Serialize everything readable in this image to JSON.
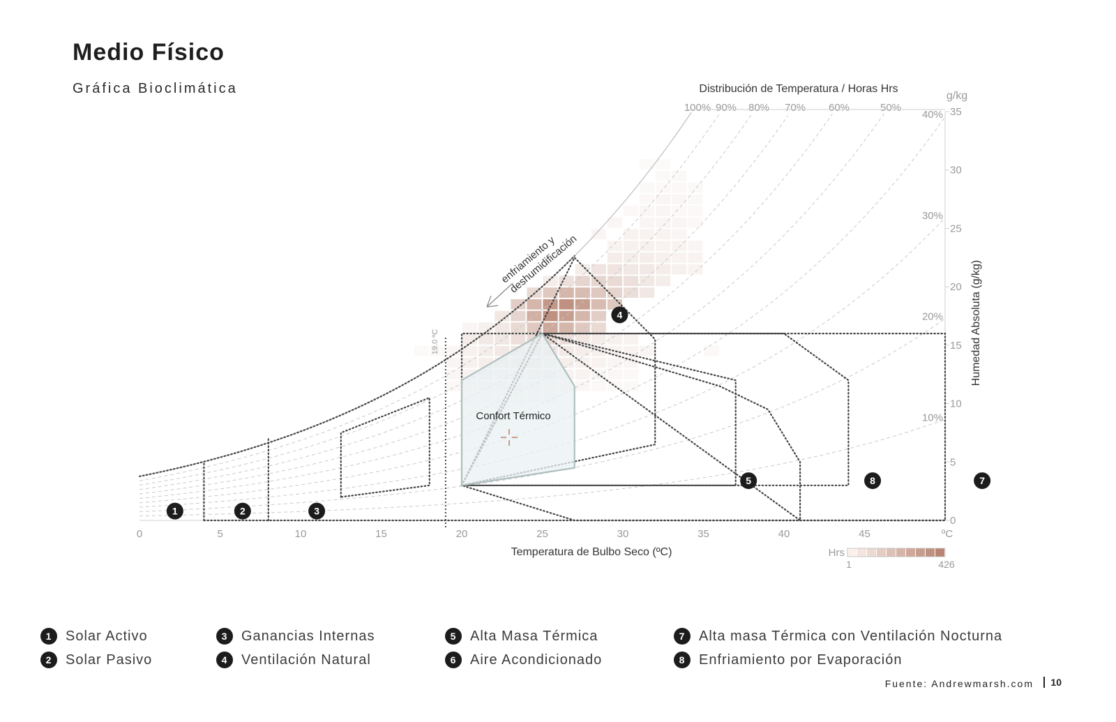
{
  "header": {
    "title": "Medio Físico",
    "subtitle": "Gráfica Bioclimática"
  },
  "chart_data": {
    "type": "psychrometric",
    "top_title": "Distribución de Temperatura / Horas Hrs",
    "xlabel": "Temperatura de Bulbo Seco (ºC)",
    "ylabel": "Humedad Absoluta (g/kg)",
    "y_unit": "g/kg",
    "x_unit_tick": "ºC",
    "xlim": [
      0,
      50
    ],
    "ylim": [
      0,
      35
    ],
    "x_ticks": [
      "0",
      "5",
      "10",
      "15",
      "20",
      "25",
      "30",
      "35",
      "40",
      "45"
    ],
    "y_ticks": [
      "0",
      "5",
      "10",
      "15",
      "20",
      "25",
      "30",
      "35"
    ],
    "rh_top_labels": [
      "100%",
      "90%",
      "80%",
      "70%",
      "60%",
      "50%"
    ],
    "rh_right_labels": [
      "40%",
      "30%",
      "20%",
      "10%"
    ],
    "rh_right_values": [
      40,
      30,
      20,
      10
    ],
    "vertical_marker": {
      "label": "19.0 ºC",
      "value": 19
    },
    "annotation": {
      "line1": "enfriamiento y",
      "line2": "deshumidificación"
    },
    "comfort_label": "Confort Térmico",
    "comfort_zone": [
      [
        20,
        3
      ],
      [
        20,
        12
      ],
      [
        25,
        16
      ],
      [
        27,
        11.5
      ],
      [
        27,
        4.5
      ]
    ],
    "strategy_zones": [
      {
        "id": 1,
        "polygon": [
          [
            4,
            0
          ],
          [
            4,
            5
          ]
        ]
      },
      {
        "id": 2,
        "polygon": [
          [
            8,
            0
          ],
          [
            8,
            7
          ]
        ]
      },
      {
        "id": 3,
        "polygon": [
          [
            12.5,
            2
          ],
          [
            12.5,
            7.5
          ],
          [
            18,
            10.5
          ],
          [
            18,
            3
          ]
        ]
      },
      {
        "id": 4,
        "polygon": [
          [
            20,
            3
          ],
          [
            27,
            22.5
          ],
          [
            32,
            15.5
          ],
          [
            32,
            6.5
          ]
        ]
      },
      {
        "id": 5,
        "polygon": [
          [
            20,
            3
          ],
          [
            25,
            16
          ],
          [
            37,
            12
          ],
          [
            37,
            3
          ]
        ]
      },
      {
        "id": 6,
        "polygon": [
          [
            20,
            3
          ],
          [
            20,
            16
          ],
          [
            50,
            16
          ],
          [
            50,
            0
          ],
          [
            27,
            0
          ]
        ]
      },
      {
        "id": 8,
        "polygon": [
          [
            20,
            3
          ],
          [
            25,
            16
          ],
          [
            40,
            16
          ],
          [
            44,
            12
          ],
          [
            44,
            3
          ]
        ]
      },
      {
        "id": 9,
        "polygon": [
          [
            25,
            16
          ],
          [
            36,
            11.5
          ],
          [
            39,
            9.5
          ],
          [
            41,
            5
          ],
          [
            41,
            0
          ]
        ]
      }
    ],
    "markers": [
      {
        "id": "1",
        "x": 2.2,
        "y": 0.8
      },
      {
        "id": "2",
        "x": 6.4,
        "y": 0.8
      },
      {
        "id": "3",
        "x": 11.0,
        "y": 0.8
      },
      {
        "id": "4",
        "x": 29.8,
        "y": 17.6
      },
      {
        "id": "5",
        "x": 37.8,
        "y": 3.4
      },
      {
        "id": "8",
        "x": 45.5,
        "y": 3.4
      },
      {
        "id": "7",
        "x": 52.3,
        "y": 3.4
      }
    ],
    "heatmap_cells": [
      [
        25,
        18,
        0.85
      ],
      [
        26,
        18,
        0.9
      ],
      [
        27,
        18,
        0.8
      ],
      [
        24,
        18,
        0.6
      ],
      [
        28,
        18,
        0.55
      ],
      [
        23,
        18,
        0.4
      ],
      [
        29,
        18,
        0.45
      ],
      [
        25,
        17,
        0.9
      ],
      [
        26,
        17,
        0.8
      ],
      [
        24,
        17,
        0.65
      ],
      [
        27,
        17,
        0.6
      ],
      [
        28,
        17,
        0.4
      ],
      [
        23,
        17,
        0.35
      ],
      [
        22,
        17,
        0.2
      ],
      [
        25,
        16,
        0.7
      ],
      [
        26,
        16,
        0.6
      ],
      [
        24,
        16,
        0.45
      ],
      [
        27,
        16,
        0.45
      ],
      [
        23,
        16,
        0.3
      ],
      [
        28,
        16,
        0.3
      ],
      [
        22,
        16,
        0.18
      ],
      [
        26,
        19,
        0.6
      ],
      [
        27,
        19,
        0.55
      ],
      [
        25,
        19,
        0.45
      ],
      [
        28,
        19,
        0.45
      ],
      [
        29,
        19,
        0.35
      ],
      [
        24,
        19,
        0.3
      ],
      [
        30,
        19,
        0.28
      ],
      [
        31,
        19,
        0.2
      ],
      [
        27,
        20,
        0.35
      ],
      [
        28,
        20,
        0.35
      ],
      [
        29,
        20,
        0.3
      ],
      [
        30,
        20,
        0.25
      ],
      [
        26,
        20,
        0.25
      ],
      [
        31,
        20,
        0.2
      ],
      [
        32,
        20,
        0.15
      ],
      [
        25,
        20,
        0.15
      ],
      [
        28,
        21,
        0.22
      ],
      [
        29,
        21,
        0.22
      ],
      [
        30,
        21,
        0.2
      ],
      [
        31,
        21,
        0.18
      ],
      [
        32,
        21,
        0.15
      ],
      [
        33,
        21,
        0.12
      ],
      [
        27,
        21,
        0.15
      ],
      [
        34,
        21,
        0.1
      ],
      [
        29,
        22,
        0.15
      ],
      [
        30,
        22,
        0.15
      ],
      [
        31,
        22,
        0.15
      ],
      [
        32,
        22,
        0.12
      ],
      [
        33,
        22,
        0.1
      ],
      [
        34,
        22,
        0.1
      ],
      [
        29,
        23,
        0.1
      ],
      [
        30,
        23,
        0.12
      ],
      [
        31,
        23,
        0.12
      ],
      [
        32,
        23,
        0.1
      ],
      [
        33,
        23,
        0.1
      ],
      [
        34,
        23,
        0.08
      ],
      [
        28,
        24,
        0.08
      ],
      [
        30,
        24,
        0.1
      ],
      [
        31,
        24,
        0.1
      ],
      [
        32,
        24,
        0.1
      ],
      [
        33,
        24,
        0.08
      ],
      [
        29,
        25,
        0.07
      ],
      [
        31,
        25,
        0.08
      ],
      [
        32,
        25,
        0.08
      ],
      [
        33,
        25,
        0.08
      ],
      [
        34,
        25,
        0.06
      ],
      [
        30,
        26,
        0.06
      ],
      [
        31,
        26,
        0.07
      ],
      [
        32,
        26,
        0.08
      ],
      [
        33,
        26,
        0.06
      ],
      [
        34,
        26,
        0.06
      ],
      [
        31,
        27,
        0.06
      ],
      [
        32,
        27,
        0.08
      ],
      [
        33,
        27,
        0.07
      ],
      [
        34,
        27,
        0.05
      ],
      [
        32,
        28,
        0.06
      ],
      [
        33,
        28,
        0.06
      ],
      [
        34,
        28,
        0.05
      ],
      [
        31,
        28,
        0.05
      ],
      [
        32,
        29,
        0.05
      ],
      [
        33,
        29,
        0.05
      ],
      [
        31,
        30,
        0.04
      ],
      [
        32,
        30,
        0.04
      ],
      [
        20,
        15,
        0.15
      ],
      [
        21,
        15,
        0.18
      ],
      [
        22,
        15,
        0.2
      ],
      [
        23,
        15,
        0.25
      ],
      [
        24,
        15,
        0.3
      ],
      [
        25,
        15,
        0.3
      ],
      [
        26,
        15,
        0.25
      ],
      [
        27,
        15,
        0.2
      ],
      [
        28,
        15,
        0.15
      ],
      [
        29,
        15,
        0.12
      ],
      [
        30,
        15,
        0.1
      ],
      [
        20,
        14,
        0.12
      ],
      [
        21,
        14,
        0.15
      ],
      [
        22,
        14,
        0.18
      ],
      [
        23,
        14,
        0.2
      ],
      [
        24,
        14,
        0.22
      ],
      [
        25,
        14,
        0.2
      ],
      [
        26,
        14,
        0.18
      ],
      [
        27,
        14,
        0.15
      ],
      [
        28,
        14,
        0.12
      ],
      [
        29,
        14,
        0.1
      ],
      [
        30,
        14,
        0.1
      ],
      [
        31,
        14,
        0.08
      ],
      [
        35,
        14,
        0.06
      ],
      [
        19,
        13,
        0.08
      ],
      [
        20,
        13,
        0.12
      ],
      [
        21,
        13,
        0.14
      ],
      [
        22,
        13,
        0.15
      ],
      [
        23,
        13,
        0.18
      ],
      [
        24,
        13,
        0.18
      ],
      [
        25,
        13,
        0.15
      ],
      [
        26,
        13,
        0.14
      ],
      [
        27,
        13,
        0.12
      ],
      [
        28,
        13,
        0.1
      ],
      [
        29,
        13,
        0.08
      ],
      [
        30,
        13,
        0.08
      ],
      [
        19,
        12,
        0.07
      ],
      [
        20,
        12,
        0.1
      ],
      [
        21,
        12,
        0.12
      ],
      [
        22,
        12,
        0.12
      ],
      [
        23,
        12,
        0.14
      ],
      [
        24,
        12,
        0.14
      ],
      [
        25,
        12,
        0.12
      ],
      [
        26,
        12,
        0.1
      ],
      [
        27,
        12,
        0.1
      ],
      [
        28,
        12,
        0.08
      ],
      [
        29,
        12,
        0.07
      ],
      [
        30,
        12,
        0.06
      ],
      [
        19,
        11,
        0.06
      ],
      [
        20,
        11,
        0.08
      ],
      [
        21,
        11,
        0.1
      ],
      [
        22,
        11,
        0.1
      ],
      [
        23,
        11,
        0.1
      ],
      [
        24,
        11,
        0.1
      ],
      [
        25,
        11,
        0.08
      ],
      [
        26,
        11,
        0.08
      ],
      [
        27,
        11,
        0.07
      ],
      [
        28,
        11,
        0.06
      ],
      [
        29,
        11,
        0.06
      ],
      [
        30,
        11,
        0.05
      ],
      [
        20,
        10,
        0.06
      ],
      [
        21,
        10,
        0.07
      ],
      [
        22,
        10,
        0.08
      ],
      [
        23,
        10,
        0.08
      ],
      [
        24,
        10,
        0.07
      ],
      [
        25,
        10,
        0.06
      ],
      [
        20,
        9,
        0.05
      ],
      [
        21,
        9,
        0.05
      ],
      [
        22,
        9,
        0.06
      ],
      [
        23,
        9,
        0.05
      ],
      [
        20,
        8,
        0.04
      ],
      [
        21,
        8,
        0.04
      ],
      [
        22,
        8,
        0.05
      ],
      [
        20,
        7,
        0.03
      ],
      [
        21,
        7,
        0.04
      ],
      [
        18,
        14,
        0.05
      ],
      [
        19,
        14,
        0.07
      ],
      [
        17,
        14,
        0.04
      ],
      [
        21,
        16,
        0.12
      ],
      [
        20,
        16,
        0.08
      ]
    ],
    "scale": {
      "label": "Hrs",
      "min": "1",
      "max": "426",
      "low_color": "#fbf1ec",
      "high_color": "#b88572"
    },
    "colors": {
      "rh_lines": "#c9c9c9",
      "zone_lines": "#444444",
      "comfort_fill": "#eaf0f3",
      "comfort_stroke": "#aebfbe",
      "heat": "#b88572",
      "axis": "#cfcfcf"
    }
  },
  "legend": [
    {
      "num": "1",
      "label": "Solar Activo"
    },
    {
      "num": "2",
      "label": "Solar Pasivo"
    },
    {
      "num": "3",
      "label": "Ganancias Internas"
    },
    {
      "num": "4",
      "label": "Ventilación Natural"
    },
    {
      "num": "5",
      "label": "Alta Masa Térmica"
    },
    {
      "num": "6",
      "label": "Aire Acondicionado"
    },
    {
      "num": "7",
      "label": "Alta masa Térmica con Ventilación Nocturna"
    },
    {
      "num": "8",
      "label": "Enfriamiento por Evaporación"
    }
  ],
  "footer": {
    "source_label": "Fuente:",
    "source_value": "Andrewmarsh.com",
    "page_number": "10"
  }
}
